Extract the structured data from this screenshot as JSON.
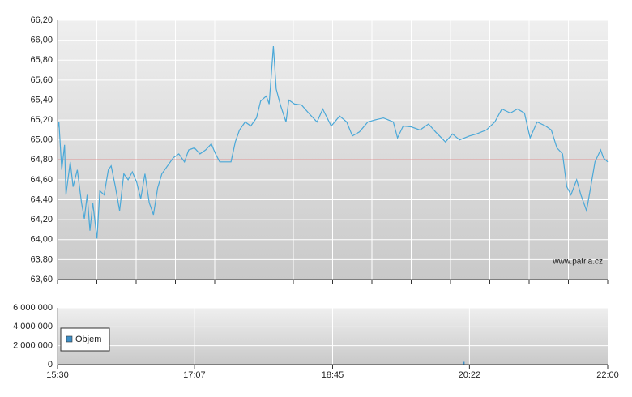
{
  "chart_data": [
    {
      "type": "line",
      "color": "#4aa8d8",
      "x": [
        "15:30",
        "15:31",
        "15:33",
        "15:35",
        "15:36",
        "15:39",
        "15:41",
        "15:44",
        "15:47",
        "15:49",
        "15:51",
        "15:53",
        "15:55",
        "15:58",
        "16:00",
        "16:03",
        "16:06",
        "16:08",
        "16:11",
        "16:14",
        "16:17",
        "16:20",
        "16:23",
        "16:26",
        "16:29",
        "16:32",
        "16:35",
        "16:38",
        "16:41",
        "16:44",
        "16:48",
        "16:52",
        "16:56",
        "17:00",
        "17:03",
        "17:07",
        "17:11",
        "17:15",
        "17:19",
        "17:22",
        "17:25",
        "17:33",
        "17:36",
        "17:39",
        "17:43",
        "17:47",
        "17:51",
        "17:54",
        "17:58",
        "18:00",
        "18:03",
        "18:05",
        "18:08",
        "18:12",
        "18:14",
        "18:18",
        "18:23",
        "18:28",
        "18:34",
        "18:38",
        "18:44",
        "18:50",
        "18:55",
        "18:59",
        "19:04",
        "19:10",
        "19:15",
        "19:21",
        "19:28",
        "19:31",
        "19:35",
        "19:41",
        "19:47",
        "19:53",
        "19:58",
        "20:05",
        "20:10",
        "20:15",
        "20:22",
        "20:27",
        "20:34",
        "20:40",
        "20:45",
        "20:51",
        "20:56",
        "21:01",
        "21:05",
        "21:10",
        "21:16",
        "21:20",
        "21:24",
        "21:28",
        "21:31",
        "21:34",
        "21:38",
        "21:41",
        "21:45",
        "21:48",
        "21:51",
        "21:55",
        "21:57",
        "22:00"
      ],
      "values": [
        65.1,
        65.18,
        64.7,
        64.95,
        64.45,
        64.78,
        64.53,
        64.7,
        64.37,
        64.21,
        64.45,
        64.09,
        64.37,
        64.01,
        64.49,
        64.45,
        64.7,
        64.74,
        64.53,
        64.29,
        64.66,
        64.6,
        64.68,
        64.58,
        64.41,
        64.66,
        64.37,
        64.25,
        64.52,
        64.66,
        64.74,
        64.82,
        64.86,
        64.78,
        64.9,
        64.92,
        64.86,
        64.9,
        64.96,
        64.86,
        64.78,
        64.78,
        64.98,
        65.1,
        65.18,
        65.14,
        65.22,
        65.39,
        65.44,
        65.36,
        65.94,
        65.51,
        65.35,
        65.18,
        65.4,
        65.36,
        65.35,
        65.27,
        65.18,
        65.31,
        65.14,
        65.24,
        65.18,
        65.04,
        65.08,
        65.18,
        65.2,
        65.22,
        65.18,
        65.02,
        65.14,
        65.13,
        65.1,
        65.16,
        65.08,
        64.98,
        65.06,
        65.0,
        65.04,
        65.06,
        65.1,
        65.18,
        65.31,
        65.27,
        65.31,
        65.27,
        65.02,
        65.18,
        65.14,
        65.1,
        64.92,
        64.86,
        64.53,
        64.45,
        64.6,
        64.45,
        64.29,
        64.53,
        64.78,
        64.9,
        64.82,
        64.78
      ],
      "xlim": [
        "15:30",
        "22:00"
      ],
      "ylim": [
        63.6,
        66.2
      ],
      "yticks": [
        {
          "value": 63.6,
          "label": "63,60"
        },
        {
          "value": 63.8,
          "label": "63,80"
        },
        {
          "value": 64.0,
          "label": "64,00"
        },
        {
          "value": 64.2,
          "label": "64,20"
        },
        {
          "value": 64.4,
          "label": "64,40"
        },
        {
          "value": 64.6,
          "label": "64,60"
        },
        {
          "value": 64.8,
          "label": "64,80"
        },
        {
          "value": 65.0,
          "label": "65,00"
        },
        {
          "value": 65.2,
          "label": "65,20"
        },
        {
          "value": 65.4,
          "label": "65,40"
        },
        {
          "value": 65.6,
          "label": "65,60"
        },
        {
          "value": 65.8,
          "label": "65,80"
        },
        {
          "value": 66.0,
          "label": "66,00"
        },
        {
          "value": 66.2,
          "label": "66,20"
        }
      ],
      "reference_line": 64.8,
      "reference_color": "#d23c3c",
      "annotation": "www.patria.cz",
      "grid": true
    },
    {
      "type": "bar",
      "x": [
        "18:03",
        "20:18"
      ],
      "series": [
        {
          "name": "Objem",
          "color": "#3d8fc7",
          "values": [
            40000,
            300000
          ]
        }
      ],
      "xlim": [
        "15:30",
        "22:00"
      ],
      "xticks": [
        "15:30",
        "17:07",
        "18:45",
        "20:22",
        "22:00"
      ],
      "ylim": [
        0,
        6000000
      ],
      "yticks": [
        {
          "value": 0,
          "label": "0"
        },
        {
          "value": 2000000,
          "label": "2 000 000"
        },
        {
          "value": 4000000,
          "label": "4 000 000"
        },
        {
          "value": 6000000,
          "label": "6 000 000"
        }
      ],
      "legend": "lower-left",
      "grid": true
    }
  ]
}
